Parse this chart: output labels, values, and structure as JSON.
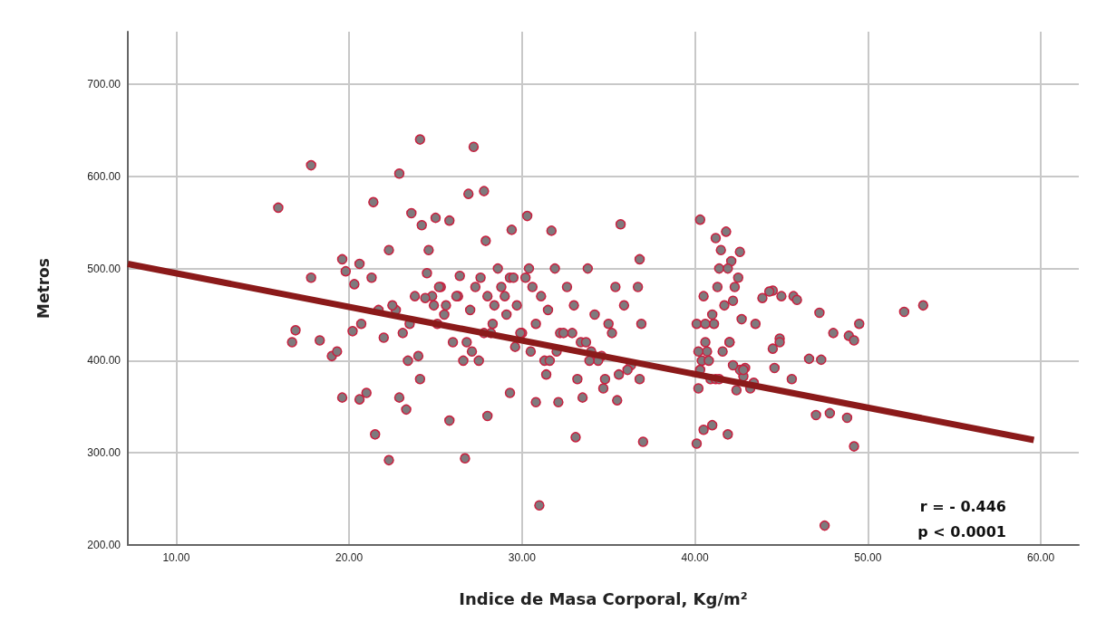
{
  "chart_data": {
    "type": "scatter",
    "xlabel": "Indice de Masa Corporal, Kg/m²",
    "ylabel": "Metros",
    "xlim": [
      7.2,
      62.2
    ],
    "ylim": [
      200,
      757
    ],
    "xticks": [
      {
        "value": 10,
        "label": "10.00"
      },
      {
        "value": 20,
        "label": "20.00"
      },
      {
        "value": 30,
        "label": "30.00"
      },
      {
        "value": 40,
        "label": "40.00"
      },
      {
        "value": 50,
        "label": "50.00"
      },
      {
        "value": 60,
        "label": "60.00"
      }
    ],
    "yticks": [
      {
        "value": 200,
        "label": "200.00"
      },
      {
        "value": 300,
        "label": "300.00"
      },
      {
        "value": 400,
        "label": "400.00"
      },
      {
        "value": 500,
        "label": "500.00"
      },
      {
        "value": 600,
        "label": "600.00"
      },
      {
        "value": 700,
        "label": "700.00"
      }
    ],
    "grid": true,
    "marker": "circle",
    "annotations": [
      "r = - 0.446",
      "p < 0.0001"
    ],
    "series": [
      {
        "color": "#7f7a7d",
        "x": [
          17.8,
          15.9,
          22.9,
          24.1,
          27.2,
          26.9,
          27.8,
          21.4,
          23.6,
          24.2,
          25.0,
          25.8,
          30.3,
          29.4,
          35.7,
          40.3,
          41.8,
          41.2,
          31.7,
          22.3,
          24.6,
          36.8,
          19.6,
          20.6,
          26.4,
          27.9,
          22.3,
          26.7,
          31.0,
          47.5,
          49.2,
          40.1,
          37.0,
          33.1,
          21.5,
          41.9,
          40.5,
          41.0,
          47.0,
          47.8,
          48.8,
          25.8,
          28.0,
          23.3,
          22.9,
          19.6,
          20.6,
          21.0,
          29.3,
          30.8,
          32.1,
          35.5,
          33.5,
          52.1,
          53.2,
          49.5,
          48.9,
          49.2,
          47.2,
          46.6,
          47.3,
          44.9,
          44.9,
          45.0,
          45.7,
          45.9,
          44.5,
          44.3,
          44.5,
          45.6,
          43.5,
          42.5,
          42.7,
          43.9,
          42.9,
          42.8,
          44.6,
          42.2,
          42.6,
          42.1,
          41.5,
          43.4,
          42.4,
          48.0,
          16.7,
          16.9,
          17.8,
          18.3,
          19.0,
          19.3,
          19.8,
          20.3,
          20.2,
          20.7,
          21.3,
          21.7,
          22.7,
          23.1,
          23.4,
          24.0,
          24.1,
          24.5,
          24.8,
          25.1,
          25.3,
          25.6,
          26.0,
          26.3,
          26.6,
          27.0,
          27.3,
          27.6,
          28.0,
          28.3,
          28.6,
          29.0,
          29.3,
          29.7,
          30.0,
          30.4,
          30.8,
          31.1,
          31.5,
          31.9,
          32.2,
          32.6,
          33.0,
          33.4,
          33.8,
          34.2,
          34.6,
          35.0,
          35.4,
          35.9,
          36.3,
          36.7,
          36.9,
          23.8,
          24.4,
          25.2,
          26.2,
          27.1,
          27.8,
          28.4,
          29.1,
          29.9,
          30.6,
          31.3,
          32.0,
          32.9,
          33.7,
          34.4,
          35.2,
          36.1,
          36.8,
          22.0,
          22.5,
          23.5,
          24.9,
          25.5,
          26.8,
          27.5,
          28.8,
          29.5,
          30.2,
          31.6,
          32.4,
          33.2,
          34.0,
          34.8,
          35.6,
          40.2,
          40.4,
          40.6,
          40.9,
          41.1,
          41.4,
          41.7,
          42.0,
          42.3,
          40.3,
          40.7,
          41.0,
          41.3,
          41.6,
          42.0,
          42.6,
          40.1,
          40.5,
          40.8,
          41.2,
          41.9,
          42.8,
          43.2,
          40.2,
          40.6,
          41.4,
          42.2,
          28.2,
          29.6,
          30.5,
          31.4,
          33.9,
          34.7
        ],
        "values": [
          612,
          566,
          603,
          640,
          632,
          581,
          584,
          572,
          560,
          547,
          555,
          552,
          557,
          542,
          548,
          553,
          540,
          533,
          541,
          520,
          520,
          510,
          510,
          505,
          492,
          530,
          292,
          294,
          243,
          221,
          307,
          310,
          312,
          317,
          320,
          320,
          325,
          330,
          341,
          343,
          338,
          335,
          340,
          347,
          360,
          360,
          358,
          365,
          365,
          355,
          355,
          357,
          360,
          453,
          460,
          440,
          427,
          422,
          452,
          402,
          401,
          424,
          420,
          470,
          470,
          466,
          476,
          475,
          413,
          380,
          440,
          490,
          445,
          468,
          392,
          383,
          392,
          465,
          518,
          508,
          520,
          376,
          368,
          430,
          420,
          433,
          490,
          422,
          405,
          410,
          497,
          483,
          432,
          440,
          490,
          455,
          455,
          430,
          400,
          405,
          380,
          495,
          470,
          440,
          480,
          460,
          420,
          470,
          400,
          455,
          480,
          490,
          470,
          440,
          500,
          470,
          490,
          460,
          430,
          500,
          440,
          470,
          455,
          500,
          430,
          480,
          460,
          420,
          500,
          450,
          405,
          440,
          480,
          460,
          395,
          480,
          440,
          470,
          468,
          480,
          470,
          410,
          430,
          460,
          450,
          430,
          480,
          400,
          410,
          430,
          420,
          400,
          430,
          390,
          380,
          425,
          460,
          440,
          460,
          450,
          420,
          400,
          480,
          490,
          490,
          400,
          430,
          380,
          410,
          380,
          385,
          370,
          400,
          420,
          380,
          440,
          500,
          460,
          420,
          480,
          390,
          410,
          450,
          480,
          410,
          420,
          390,
          440,
          470,
          400,
          380,
          500,
          390,
          370,
          410,
          440,
          380,
          395,
          430,
          415,
          410,
          385,
          400,
          370
        ]
      },
      {
        "type": "line",
        "color": "#8b1a1a",
        "marker": "none",
        "x": [
          7.2,
          59.6
        ],
        "values": [
          505,
          314
        ]
      }
    ]
  }
}
